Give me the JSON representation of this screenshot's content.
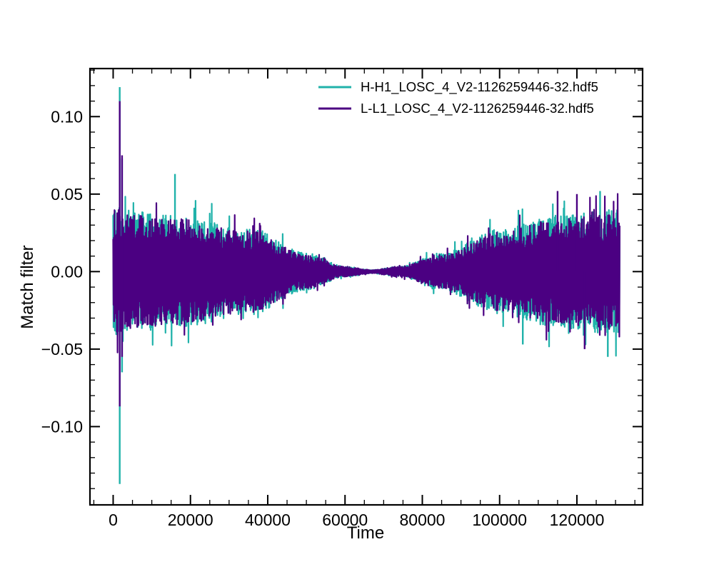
{
  "chart_data": {
    "type": "line",
    "title": "",
    "xlabel": "Time",
    "ylabel": "Match filter",
    "xlim": [
      -6000,
      137000
    ],
    "ylim": [
      -0.1505,
      0.131
    ],
    "x_ticks": [
      0,
      20000,
      40000,
      60000,
      80000,
      100000,
      120000
    ],
    "x_tick_labels": [
      "0",
      "20000",
      "40000",
      "60000",
      "80000",
      "100000",
      "120000"
    ],
    "y_ticks": [
      -0.1,
      -0.05,
      0.0,
      0.05,
      0.1
    ],
    "y_tick_labels": [
      "−0.10",
      "−0.05",
      "0.00",
      "0.05",
      "0.10"
    ],
    "legend_position": "top-right",
    "grid": false,
    "series": [
      {
        "name": "H-H1_LOSC_4_V2-1126259446-32.hdf5",
        "color": "#20b2aa",
        "x_range": [
          0,
          131071
        ],
        "envelope_points": [
          [
            0,
            0.04
          ],
          [
            3000,
            0.036
          ],
          [
            16000,
            0.033
          ],
          [
            35000,
            0.026
          ],
          [
            50000,
            0.011
          ],
          [
            60000,
            0.003
          ],
          [
            67000,
            0.001
          ],
          [
            74000,
            0.003
          ],
          [
            85000,
            0.011
          ],
          [
            100000,
            0.025
          ],
          [
            115000,
            0.033
          ],
          [
            131071,
            0.037
          ]
        ],
        "spikes": [
          [
            1700,
            0.119
          ],
          [
            1700,
            -0.137
          ],
          [
            2300,
            0.073
          ],
          [
            2300,
            -0.065
          ],
          [
            16000,
            0.063
          ],
          [
            126000,
            0.052
          ],
          [
            128000,
            -0.055
          ],
          [
            106000,
            -0.047
          ]
        ]
      },
      {
        "name": "L-L1_LOSC_4_V2-1126259446-32.hdf5",
        "color": "#4b0082",
        "x_range": [
          0,
          131071
        ],
        "envelope_points": [
          [
            0,
            0.038
          ],
          [
            3000,
            0.034
          ],
          [
            16000,
            0.031
          ],
          [
            35000,
            0.024
          ],
          [
            50000,
            0.01
          ],
          [
            60000,
            0.003
          ],
          [
            67000,
            0.001
          ],
          [
            74000,
            0.003
          ],
          [
            85000,
            0.01
          ],
          [
            100000,
            0.023
          ],
          [
            115000,
            0.031
          ],
          [
            131071,
            0.034
          ]
        ],
        "spikes": [
          [
            1700,
            0.11
          ],
          [
            1700,
            -0.087
          ],
          [
            2300,
            0.075
          ],
          [
            2300,
            -0.055
          ],
          [
            115000,
            0.052
          ],
          [
            120000,
            0.05
          ],
          [
            122000,
            -0.05
          ]
        ]
      }
    ]
  }
}
